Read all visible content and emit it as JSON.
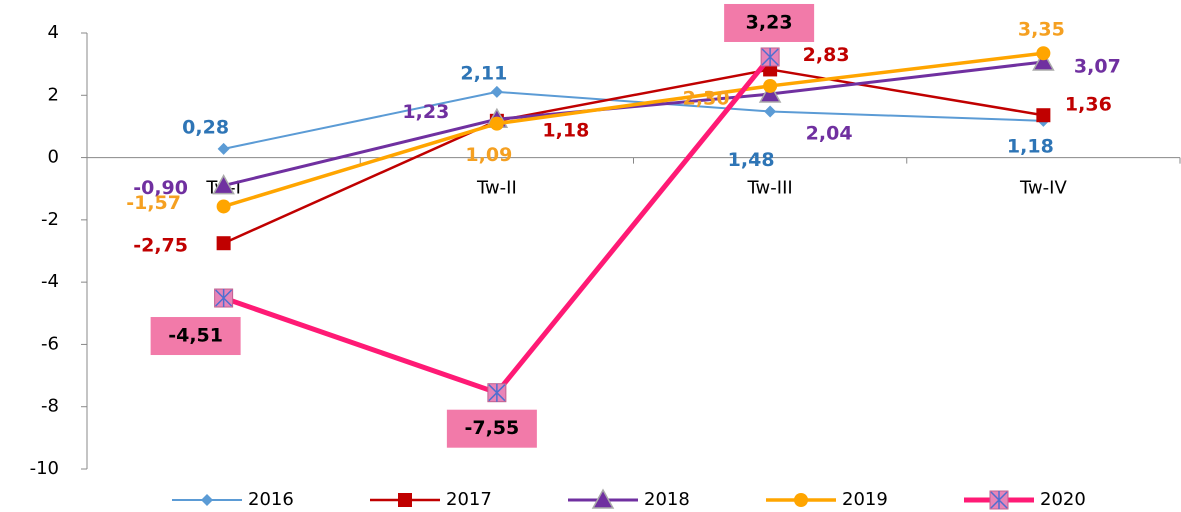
{
  "chart_data": {
    "type": "line",
    "categories": [
      "Tw-I",
      "Tw-II",
      "Tw-III",
      "Tw-IV"
    ],
    "ylim": [
      -10,
      4
    ],
    "yticks": [
      4,
      2,
      0,
      -2,
      -4,
      -6,
      -8,
      -10
    ],
    "legend": "bottom",
    "series": [
      {
        "name": "2016",
        "color": "#5b9bd5",
        "label_color": "#2e75b6",
        "marker": "diamond",
        "values": [
          0.28,
          2.11,
          1.48,
          1.18
        ],
        "value_labels": [
          "0,28",
          "2,11",
          "1,48",
          "1,18"
        ]
      },
      {
        "name": "2017",
        "color": "#c00000",
        "label_color": "#c00000",
        "marker": "square",
        "values": [
          -2.75,
          1.18,
          2.83,
          1.36
        ],
        "value_labels": [
          "-2,75",
          "1,18",
          "2,83",
          "1,36"
        ]
      },
      {
        "name": "2018",
        "color": "#7030a0",
        "label_color": "#7030a0",
        "marker": "triangle",
        "values": [
          -0.9,
          1.23,
          2.04,
          3.07
        ],
        "value_labels": [
          "-0,90",
          "1,23",
          "2,04",
          "3,07"
        ]
      },
      {
        "name": "2019",
        "color": "#ffa500",
        "label_color": "#f5a021",
        "marker": "circle",
        "values": [
          -1.57,
          1.09,
          2.3,
          3.35
        ],
        "value_labels": [
          "-1,57",
          "1,09",
          "2,30",
          "3,35"
        ]
      },
      {
        "name": "2020",
        "color": "#ff1a75",
        "label_color": "#000000",
        "marker": "xsquare",
        "values": [
          -4.51,
          -7.55,
          3.23,
          null
        ],
        "value_labels": [
          "-4,51",
          "-7,55",
          "3,23",
          null
        ]
      }
    ]
  }
}
